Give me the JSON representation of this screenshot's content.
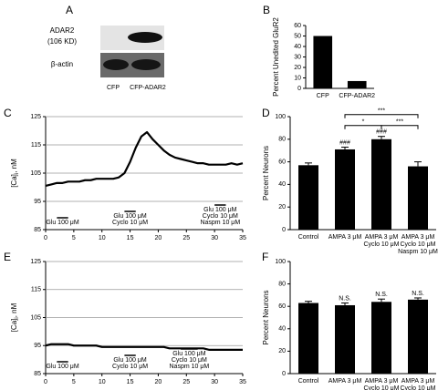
{
  "panel_labels": [
    "A",
    "B",
    "C",
    "D",
    "E",
    "F"
  ],
  "blot": {
    "rows": [
      {
        "label": [
          "ADAR2",
          "(106 KD)"
        ]
      },
      {
        "label": [
          "β-actin"
        ]
      }
    ],
    "lanes": [
      "CFP",
      "CFP-ADAR2"
    ]
  },
  "chart_data": [
    {
      "type": "bar",
      "ylabel": "Percent Unedited GluR2",
      "categories": [
        [
          "CFP"
        ],
        [
          "CFP-ADAR2"
        ]
      ],
      "values": [
        50,
        7
      ],
      "color": "#000000",
      "ylim": [
        0,
        60
      ],
      "yticks": [
        0,
        10,
        20,
        30,
        40,
        50,
        60
      ]
    },
    {
      "type": "line",
      "ylabel": {
        "main": "[Ca]",
        "sub": "i",
        "unit": ", nM"
      },
      "color": "#000000",
      "grid": true,
      "x": [
        0,
        1,
        2,
        3,
        4,
        5,
        6,
        7,
        8,
        9,
        10,
        11,
        12,
        13,
        14,
        15,
        16,
        17,
        18,
        19,
        20,
        21,
        22,
        23,
        24,
        25,
        26,
        27,
        28,
        29,
        30,
        31,
        32,
        33,
        34,
        35
      ],
      "values": [
        100.5,
        101,
        101.5,
        101.5,
        102,
        102,
        102,
        102.5,
        102.5,
        103,
        103,
        103,
        103,
        103.5,
        105,
        109,
        114,
        118,
        119.5,
        117,
        115,
        113,
        111.5,
        110.5,
        110,
        109.5,
        109,
        108.5,
        108.5,
        108,
        108,
        108,
        108,
        108.5,
        108,
        108.5
      ],
      "xlim": [
        0,
        35
      ],
      "xticks": [
        0,
        5,
        10,
        15,
        20,
        25,
        30,
        35
      ],
      "ylim": [
        85,
        125
      ],
      "yticks": [
        85,
        95,
        105,
        115,
        125
      ],
      "annotations": [
        {
          "lines": [
            "Glu 100 μM"
          ],
          "x": [
            2,
            4
          ]
        },
        {
          "lines": [
            "Glu 100 μM",
            "Cyclo 10 μM"
          ],
          "x": [
            14,
            16
          ]
        },
        {
          "lines": [
            "Glu 100 μM",
            "Cyclo 10 μM",
            "Naspm 10 μM"
          ],
          "x": [
            30,
            32
          ]
        }
      ]
    },
    {
      "type": "bar",
      "ylabel": "Percent Neurons",
      "categories": [
        [
          "Control"
        ],
        [
          "AMPA 3 μM"
        ],
        [
          "AMPA 3 μM",
          "Cyclo 10 μM"
        ],
        [
          "AMPA 3 μM",
          "Cyclo 10 μM",
          "Naspm 10 μM"
        ]
      ],
      "values": [
        57,
        71,
        80,
        56
      ],
      "errors": [
        2,
        2,
        2.5,
        4
      ],
      "color": "#000000",
      "ylim": [
        0,
        100
      ],
      "yticks": [
        0,
        20,
        40,
        60,
        80,
        100
      ],
      "bar_annotations": [
        null,
        "###",
        "###",
        null
      ],
      "brackets": [
        {
          "between": [
            1,
            2
          ],
          "label": "*"
        },
        {
          "between": [
            1,
            3
          ],
          "label": "***"
        },
        {
          "between": [
            2,
            3
          ],
          "label": "***"
        }
      ]
    },
    {
      "type": "line",
      "ylabel": {
        "main": "[Ca]",
        "sub": "i",
        "unit": ", nM"
      },
      "color": "#000000",
      "grid": true,
      "x": [
        0,
        1,
        2,
        3,
        4,
        5,
        6,
        7,
        8,
        9,
        10,
        11,
        12,
        13,
        14,
        15,
        16,
        17,
        18,
        19,
        20,
        21,
        22,
        23,
        24,
        25,
        26,
        27,
        28,
        29,
        30,
        31,
        32,
        33,
        34,
        35
      ],
      "values": [
        95,
        95.5,
        95.5,
        95.5,
        95.5,
        95,
        95,
        95,
        95,
        95,
        94.5,
        94.5,
        94.5,
        94.5,
        94.5,
        94.5,
        94.5,
        94.5,
        94.5,
        94.5,
        94.5,
        94.5,
        94,
        94,
        94,
        94,
        94,
        94,
        94,
        93.5,
        93.5,
        93.5,
        93.5,
        93.5,
        93.5,
        93.5
      ],
      "xlim": [
        0,
        35
      ],
      "xticks": [
        0,
        5,
        10,
        15,
        20,
        25,
        30,
        35
      ],
      "ylim": [
        85,
        125
      ],
      "yticks": [
        85,
        95,
        105,
        115,
        125
      ],
      "annotations": [
        {
          "lines": [
            "Glu 100 μM"
          ],
          "x": [
            2,
            4
          ]
        },
        {
          "lines": [
            "Glu 100 μM",
            "Cyclo 10 μM"
          ],
          "x": [
            14,
            16
          ]
        },
        {
          "lines": [
            "Glu 100 μM",
            "Cyclo 10 μM",
            "Naspm 10 μM"
          ],
          "x": [
            24,
            27
          ]
        }
      ]
    },
    {
      "type": "bar",
      "ylabel": "Percent Neurons",
      "categories": [
        [
          "Control"
        ],
        [
          "AMPA 3 μM"
        ],
        [
          "AMPA 3 μM",
          "Cyclo 10 μM"
        ],
        [
          "AMPA 3 μM",
          "Cyclo 10 μM",
          "Naspm 10 μM"
        ]
      ],
      "values": [
        63,
        61,
        64,
        66
      ],
      "errors": [
        1.5,
        2,
        2.5,
        1.5
      ],
      "color": "#000000",
      "ylim": [
        0,
        100
      ],
      "yticks": [
        0,
        20,
        40,
        60,
        80,
        100
      ],
      "bar_annotations": [
        null,
        "N.S.",
        "N.S.",
        "N.S."
      ]
    }
  ]
}
